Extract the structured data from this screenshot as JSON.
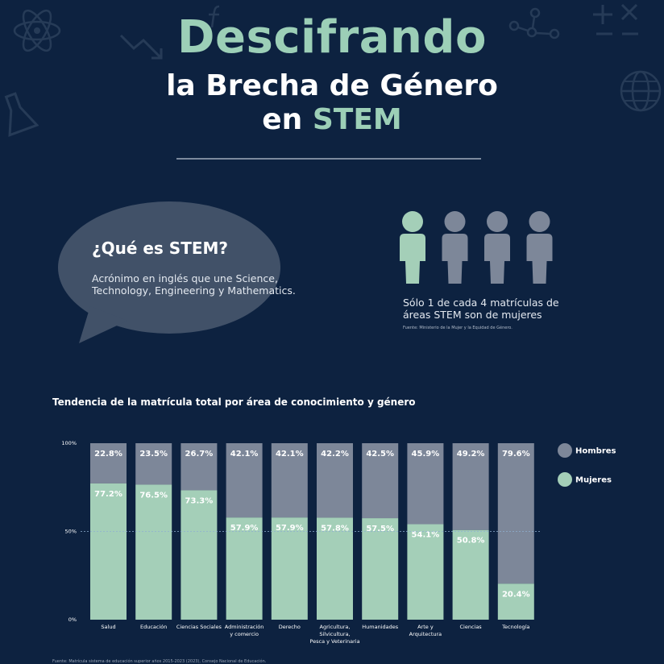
{
  "header": {
    "title_line1": "Descifrando",
    "title_line2": "la Brecha de Género",
    "title_line3_prefix": "en",
    "title_line3_highlight": "STEM"
  },
  "info": {
    "question": "¿Qué es STEM?",
    "answer": "Acrónimo en inglés que une Science, Technology, Engineering y Mathematics."
  },
  "stat": {
    "text": "Sólo 1 de cada 4 matrículas de áreas STEM son de mujeres",
    "source": "Fuente: Ministerio de la Mujer y la Equidad de Género.",
    "women_highlighted": 1,
    "total_people": 4
  },
  "footer": {
    "source": "Fuente: Matrícula sistema de educación superior años 2015-2023 (2023), Consejo Nacional de Educación."
  },
  "colors": {
    "background": "#0d2240",
    "accent_green": "#9ccfb7",
    "men_gray": "#7d8799",
    "women_green": "#a4cfb8"
  },
  "chart_data": {
    "type": "bar",
    "stacked": true,
    "title": "Tendencia de la matrícula total por área de conocimiento y género",
    "categories": [
      [
        "Salud"
      ],
      [
        "Educación"
      ],
      [
        "Ciencias Sociales"
      ],
      [
        "Administración",
        "y comercio"
      ],
      [
        "Derecho"
      ],
      [
        "Agricultura,",
        "Silvicultura,",
        "Pesca y Veterinaria"
      ],
      [
        "Humanidades"
      ],
      [
        "Arte y",
        "Arquitectura"
      ],
      [
        "Ciencias"
      ],
      [
        "Tecnología"
      ]
    ],
    "series": [
      {
        "name": "Mujeres",
        "values": [
          77.2,
          76.5,
          73.3,
          57.9,
          57.9,
          57.8,
          57.5,
          54.1,
          50.8,
          20.4
        ],
        "labels": [
          "77.2%",
          "76.5%",
          "73.3%",
          "57.9%",
          "57.9%",
          "57.8%",
          "57.5%",
          "54.1%",
          "50.8%",
          "20.4%"
        ]
      },
      {
        "name": "Hombres",
        "values": [
          22.8,
          23.5,
          26.7,
          42.1,
          42.1,
          42.2,
          42.5,
          45.9,
          49.2,
          79.6
        ],
        "labels": [
          "22.8%",
          "23.5%",
          "26.7%",
          "42.1%",
          "42.1%",
          "42.2%",
          "42.5%",
          "45.9%",
          "49.2%",
          "79.6%"
        ]
      }
    ],
    "yticks": [
      "0%",
      "50%",
      "100%"
    ],
    "ylim": [
      0,
      100
    ],
    "legend": [
      "Hombres",
      "Mujeres"
    ],
    "legend_position": "right"
  }
}
